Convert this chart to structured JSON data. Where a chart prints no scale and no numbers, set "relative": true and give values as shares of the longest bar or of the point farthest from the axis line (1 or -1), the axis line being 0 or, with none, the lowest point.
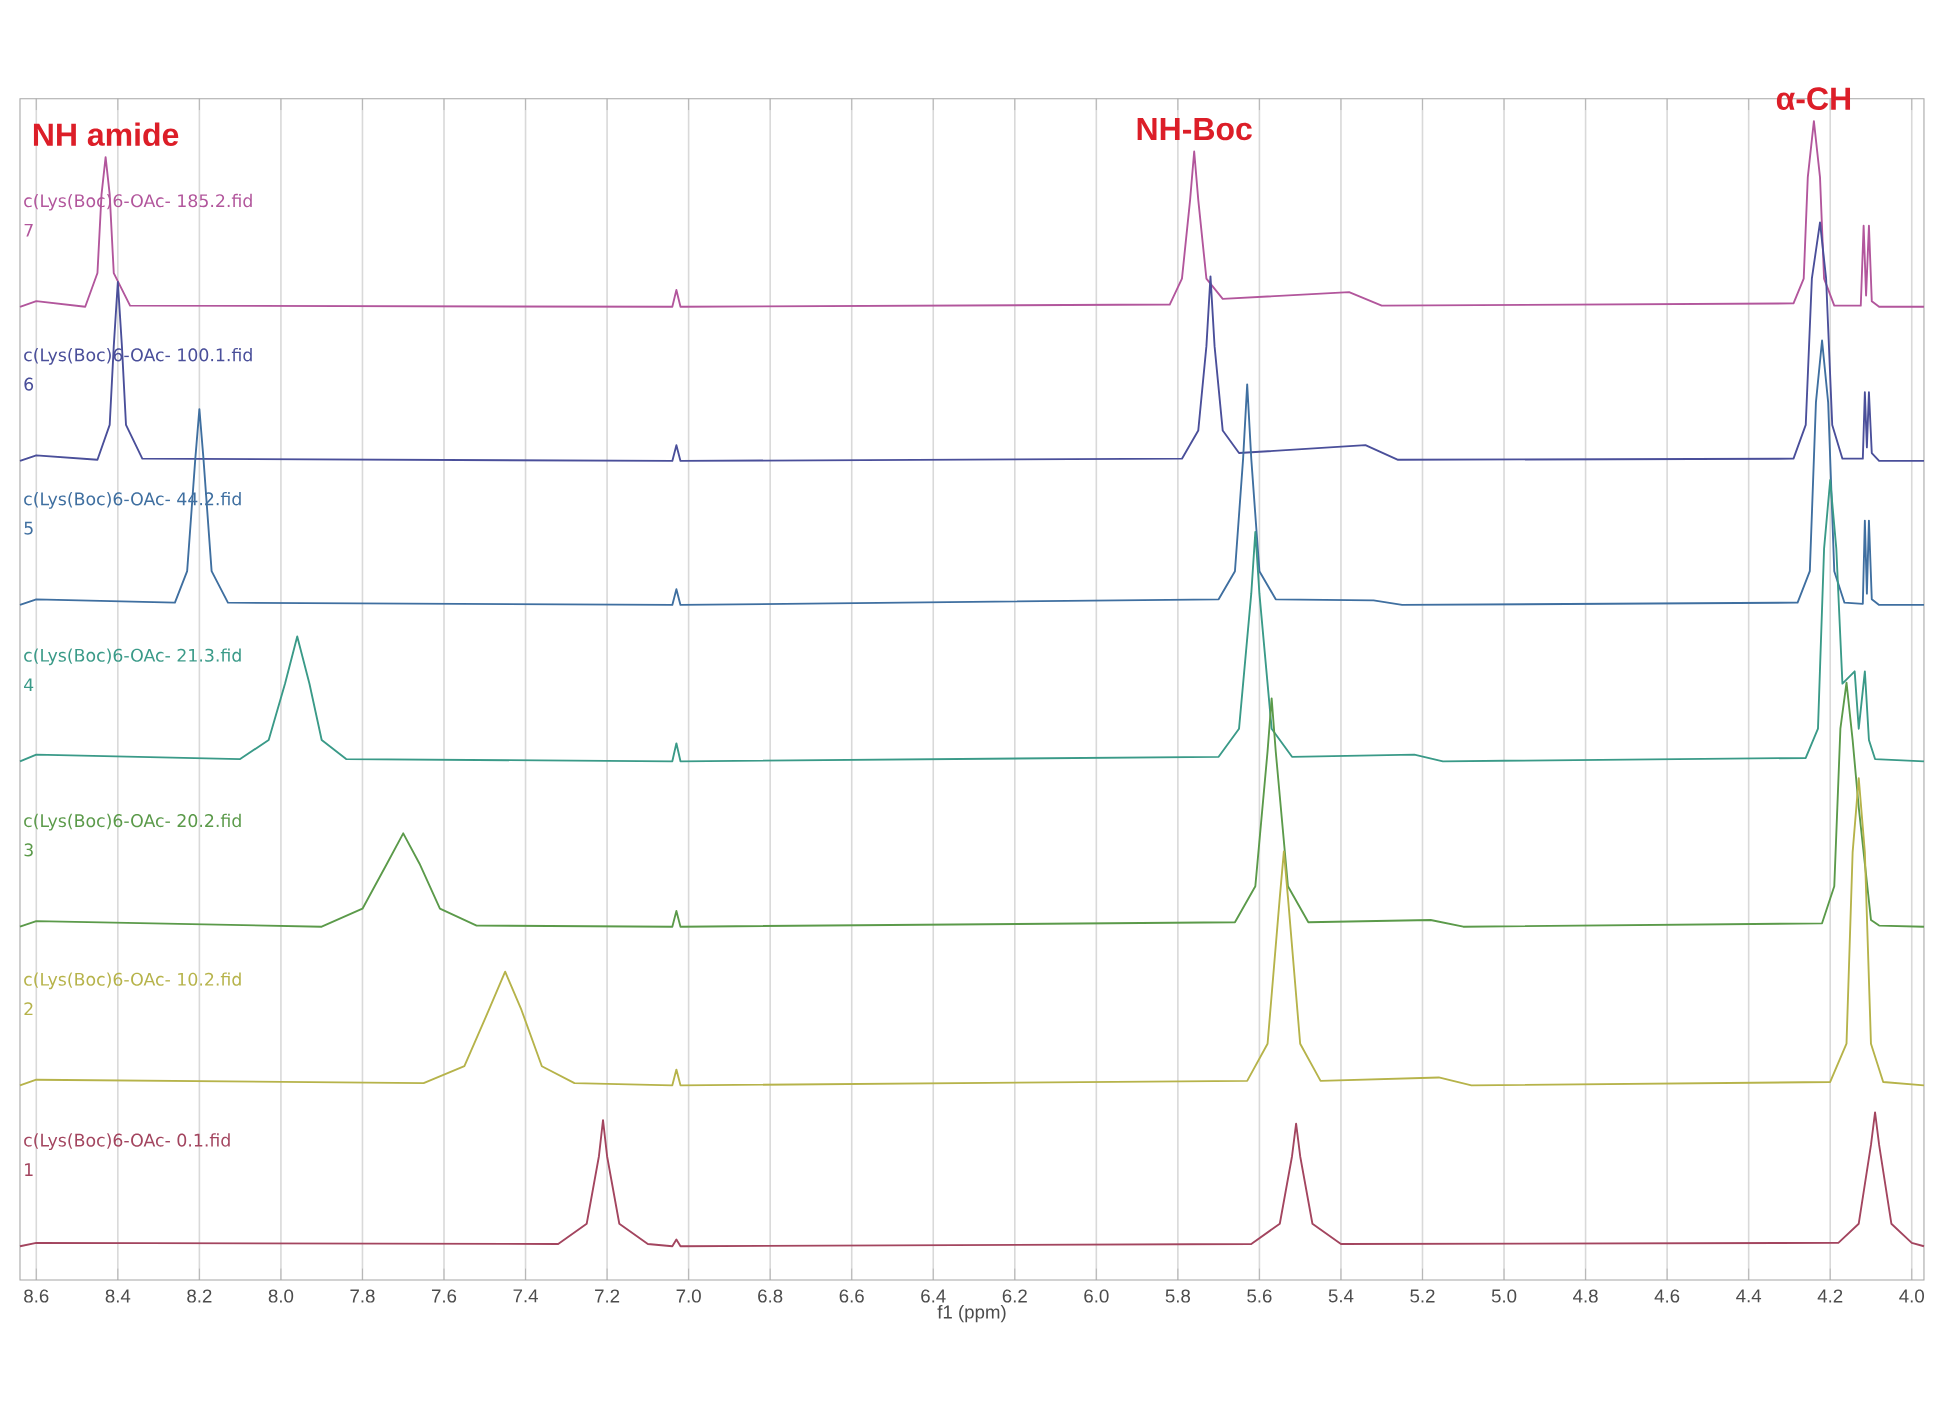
{
  "chart_data": {
    "type": "line",
    "relative": true,
    "xlabel": "f1 (ppm)",
    "xlim": [
      8.64,
      3.97
    ],
    "xticks": [
      8.6,
      8.4,
      8.2,
      {
        "value": 8,
        "label": "8.0"
      },
      7.8,
      7.6,
      7.4,
      7.2,
      {
        "value": 7,
        "label": "7.0"
      },
      6.8,
      6.6,
      6.4,
      6.2,
      {
        "value": 6,
        "label": "6.0"
      },
      5.8,
      5.6,
      5.4,
      5.2,
      {
        "value": 5,
        "label": "5.0"
      },
      4.8,
      4.6,
      4.4,
      4.2,
      {
        "value": 4,
        "label": "4.0"
      }
    ],
    "grid": "x",
    "legend": false,
    "marker": "none",
    "line_style": "solid",
    "series": [
      {
        "name": "c(Lys(Boc)6-OAc- 185.2.fid",
        "color": "#b2569c",
        "x": [
          8.64,
          8.6,
          8.48,
          8.45,
          8.44,
          8.43,
          8.42,
          8.41,
          8.37,
          7.04,
          7.03,
          7.02,
          5.82,
          5.79,
          5.77,
          5.76,
          5.75,
          5.73,
          5.69,
          5.38,
          5.3,
          4.29,
          4.265,
          4.255,
          4.24,
          4.225,
          4.215,
          4.19,
          4.125,
          4.118,
          4.112,
          4.105,
          4.098,
          4.08,
          3.97
        ],
        "values": [
          0.835,
          0.84,
          0.835,
          0.865,
          0.935,
          0.968,
          0.935,
          0.865,
          0.836,
          0.835,
          0.85,
          0.835,
          0.837,
          0.86,
          0.93,
          0.973,
          0.93,
          0.86,
          0.842,
          0.848,
          0.836,
          0.838,
          0.86,
          0.95,
          1.0,
          0.95,
          0.86,
          0.836,
          0.836,
          0.907,
          0.845,
          0.907,
          0.84,
          0.835,
          0.835
        ]
      },
      {
        "name": "c(Lys(Boc)6-OAc- 100.1.fid",
        "color": "#4a4f9a",
        "x": [
          8.64,
          8.6,
          8.45,
          8.42,
          8.41,
          8.4,
          8.39,
          8.38,
          8.34,
          7.04,
          7.03,
          7.02,
          5.79,
          5.75,
          5.73,
          5.72,
          5.71,
          5.69,
          5.65,
          5.34,
          5.26,
          4.29,
          4.26,
          4.245,
          4.225,
          4.21,
          4.195,
          4.17,
          4.12,
          4.115,
          4.11,
          4.105,
          4.098,
          4.08,
          3.97
        ],
        "values": [
          0.698,
          0.703,
          0.699,
          0.73,
          0.8,
          0.857,
          0.8,
          0.73,
          0.7,
          0.698,
          0.712,
          0.698,
          0.7,
          0.725,
          0.8,
          0.862,
          0.8,
          0.725,
          0.705,
          0.712,
          0.699,
          0.7,
          0.73,
          0.86,
          0.91,
          0.86,
          0.73,
          0.7,
          0.7,
          0.759,
          0.71,
          0.759,
          0.705,
          0.698,
          0.698
        ]
      },
      {
        "name": "c(Lys(Boc)6-OAc- 44.2.fid",
        "color": "#3f6fa0",
        "x": [
          8.64,
          8.6,
          8.26,
          8.23,
          8.21,
          8.2,
          8.19,
          8.17,
          8.13,
          7.04,
          7.03,
          7.02,
          5.7,
          5.66,
          5.64,
          5.63,
          5.62,
          5.6,
          5.56,
          5.32,
          5.25,
          4.28,
          4.25,
          4.235,
          4.22,
          4.205,
          4.19,
          4.165,
          4.12,
          4.115,
          4.11,
          4.105,
          4.098,
          4.08,
          3.97
        ],
        "values": [
          0.57,
          0.575,
          0.572,
          0.6,
          0.7,
          0.744,
          0.7,
          0.6,
          0.572,
          0.57,
          0.584,
          0.57,
          0.575,
          0.6,
          0.7,
          0.766,
          0.7,
          0.6,
          0.575,
          0.574,
          0.57,
          0.572,
          0.6,
          0.75,
          0.805,
          0.75,
          0.6,
          0.572,
          0.571,
          0.645,
          0.58,
          0.645,
          0.575,
          0.57,
          0.57
        ]
      },
      {
        "name": "c(Lys(Boc)6-OAc- 21.3.fid",
        "color": "#3a9a88",
        "x": [
          8.64,
          8.6,
          8.1,
          8.03,
          7.99,
          7.96,
          7.93,
          7.9,
          7.84,
          7.04,
          7.03,
          7.02,
          5.7,
          5.65,
          5.62,
          5.61,
          5.6,
          5.57,
          5.52,
          5.22,
          5.15,
          4.26,
          4.23,
          4.215,
          4.2,
          4.185,
          4.17,
          4.14,
          4.13,
          4.115,
          4.105,
          4.09,
          3.97
        ],
        "values": [
          0.431,
          0.437,
          0.433,
          0.45,
          0.5,
          0.542,
          0.5,
          0.45,
          0.433,
          0.431,
          0.447,
          0.431,
          0.435,
          0.46,
          0.58,
          0.635,
          0.58,
          0.46,
          0.435,
          0.437,
          0.431,
          0.434,
          0.46,
          0.62,
          0.681,
          0.62,
          0.5,
          0.511,
          0.46,
          0.511,
          0.45,
          0.433,
          0.431
        ]
      },
      {
        "name": "c(Lys(Boc)6-OAc- 20.2.fid",
        "color": "#5b9a4a",
        "x": [
          8.64,
          8.6,
          7.9,
          7.8,
          7.74,
          7.7,
          7.66,
          7.61,
          7.52,
          7.04,
          7.03,
          7.02,
          5.66,
          5.61,
          5.58,
          5.57,
          5.56,
          5.53,
          5.48,
          5.18,
          5.1,
          4.22,
          4.19,
          4.175,
          4.16,
          4.145,
          4.13,
          4.115,
          4.1,
          4.08,
          3.97
        ],
        "values": [
          0.284,
          0.289,
          0.284,
          0.3,
          0.34,
          0.367,
          0.34,
          0.3,
          0.285,
          0.284,
          0.298,
          0.284,
          0.288,
          0.32,
          0.44,
          0.487,
          0.44,
          0.32,
          0.288,
          0.29,
          0.284,
          0.287,
          0.32,
          0.46,
          0.501,
          0.45,
          0.39,
          0.34,
          0.29,
          0.285,
          0.284
        ]
      },
      {
        "name": "c(Lys(Boc)6-OAc- 10.2.fid",
        "color": "#b6b34a",
        "x": [
          8.64,
          8.6,
          7.65,
          7.55,
          7.49,
          7.45,
          7.41,
          7.36,
          7.28,
          7.04,
          7.03,
          7.02,
          5.63,
          5.58,
          5.55,
          5.54,
          5.53,
          5.5,
          5.45,
          5.16,
          5.08,
          4.2,
          4.16,
          4.145,
          4.13,
          4.115,
          4.1,
          4.07,
          3.97
        ],
        "values": [
          0.143,
          0.148,
          0.145,
          0.16,
          0.21,
          0.244,
          0.21,
          0.16,
          0.145,
          0.143,
          0.157,
          0.143,
          0.147,
          0.18,
          0.31,
          0.351,
          0.31,
          0.18,
          0.147,
          0.15,
          0.143,
          0.146,
          0.18,
          0.35,
          0.416,
          0.35,
          0.18,
          0.146,
          0.143
        ]
      },
      {
        "name": "c(Lys(Boc)6-OAc- 0.1.fid",
        "color": "#a3455f",
        "x": [
          8.64,
          8.6,
          7.32,
          7.25,
          7.22,
          7.21,
          7.2,
          7.17,
          7.1,
          7.04,
          7.03,
          7.02,
          5.62,
          5.55,
          5.52,
          5.51,
          5.5,
          5.47,
          5.4,
          4.18,
          4.13,
          4.1,
          4.09,
          4.08,
          4.05,
          4.0,
          3.97
        ],
        "values": [
          0.0,
          0.003,
          0.002,
          0.02,
          0.08,
          0.112,
          0.08,
          0.02,
          0.002,
          0.0,
          0.006,
          0.0,
          0.002,
          0.02,
          0.08,
          0.109,
          0.08,
          0.02,
          0.002,
          0.003,
          0.02,
          0.09,
          0.119,
          0.09,
          0.02,
          0.003,
          0.0
        ]
      }
    ],
    "annotations": [
      {
        "text": "NH amide",
        "x": 8.43,
        "y": 0.968
      },
      {
        "text": "NH-Boc",
        "x": 5.76,
        "y": 0.973
      },
      {
        "text": "α-CH",
        "x": 4.24,
        "y": 1.0
      },
      "7",
      "6",
      "5",
      "4",
      "3",
      "2",
      "1"
    ]
  }
}
